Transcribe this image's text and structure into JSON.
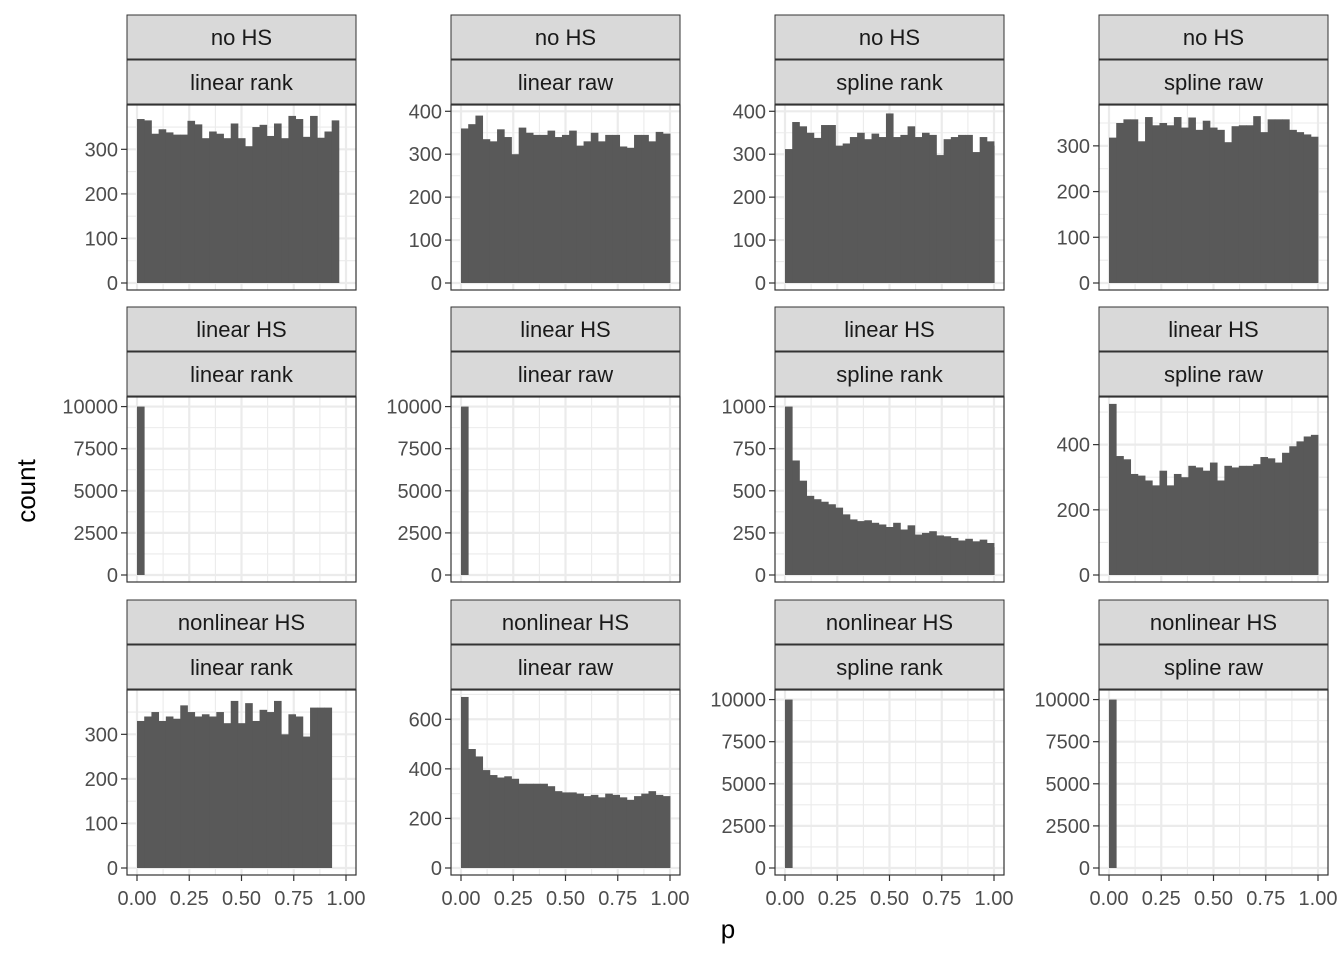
{
  "chart_data": {
    "type": "bar",
    "xlabel": "p",
    "ylabel": "count",
    "xlim": [
      0,
      1
    ],
    "x_ticks": [
      0,
      0.25,
      0.5,
      0.75,
      1
    ],
    "x_tick_labels": [
      "0.00",
      "0.25",
      "0.50",
      "0.75",
      "1.00"
    ],
    "bin_width": 0.0345,
    "grid": true,
    "bar_color": "#595959",
    "strip_color": "#d9d9d9",
    "panels": [
      {
        "row_label": "no HS",
        "col_label": "linear rank",
        "ylim": [
          0,
          395
        ],
        "y_ticks": [
          0,
          100,
          200,
          300
        ],
        "values": [
          368,
          365,
          335,
          345,
          338,
          333,
          333,
          364,
          356,
          325,
          340,
          335,
          325,
          358,
          325,
          307,
          350,
          355,
          330,
          358,
          325,
          375,
          368,
          328,
          375,
          326,
          340,
          365
        ]
      },
      {
        "row_label": "no HS",
        "col_label": "linear raw",
        "ylim": [
          0,
          410
        ],
        "y_ticks": [
          0,
          100,
          200,
          300,
          400
        ],
        "values": [
          360,
          370,
          390,
          335,
          330,
          358,
          340,
          300,
          362,
          350,
          345,
          345,
          355,
          340,
          345,
          355,
          320,
          330,
          350,
          330,
          345,
          345,
          318,
          315,
          345,
          345,
          330,
          352,
          348
        ]
      },
      {
        "row_label": "no HS",
        "col_label": "spline rank",
        "ylim": [
          0,
          410
        ],
        "y_ticks": [
          0,
          100,
          200,
          300,
          400
        ],
        "values": [
          312,
          375,
          365,
          350,
          338,
          368,
          368,
          320,
          325,
          340,
          350,
          335,
          348,
          340,
          395,
          340,
          345,
          365,
          340,
          350,
          345,
          298,
          335,
          340,
          345,
          345,
          305,
          340,
          330,
          320
        ]
      },
      {
        "row_label": "no HS",
        "col_label": "spline raw",
        "ylim": [
          0,
          385
        ],
        "y_ticks": [
          0,
          100,
          200,
          300
        ],
        "values": [
          318,
          350,
          358,
          358,
          310,
          363,
          345,
          350,
          345,
          363,
          340,
          362,
          335,
          355,
          340,
          335,
          308,
          343,
          345,
          345,
          365,
          330,
          358,
          358,
          358,
          335,
          330,
          325,
          320
        ]
      },
      {
        "row_label": "linear HS",
        "col_label": "linear rank",
        "ylim": [
          0,
          10450
        ],
        "y_ticks": [
          0,
          2500,
          5000,
          7500,
          10000
        ],
        "y_tick_labels": [
          "0",
          "2500",
          "5000",
          "7500",
          "10000"
        ],
        "values": [
          10000,
          0,
          0,
          0,
          0,
          0,
          0,
          0,
          0,
          0,
          0,
          0,
          0,
          0,
          0,
          0,
          0,
          0,
          0,
          0,
          0,
          0,
          0,
          0,
          0,
          0,
          0,
          0,
          0
        ]
      },
      {
        "row_label": "linear HS",
        "col_label": "linear raw",
        "ylim": [
          0,
          10450
        ],
        "y_ticks": [
          0,
          2500,
          5000,
          7500,
          10000
        ],
        "y_tick_labels": [
          "0",
          "2500",
          "5000",
          "7500",
          "10000"
        ],
        "values": [
          10000,
          0,
          0,
          0,
          0,
          0,
          0,
          0,
          0,
          0,
          0,
          0,
          0,
          0,
          0,
          0,
          0,
          0,
          0,
          0,
          0,
          0,
          0,
          0,
          0,
          0,
          0,
          0,
          0
        ]
      },
      {
        "row_label": "linear HS",
        "col_label": "spline rank",
        "ylim": [
          0,
          1045
        ],
        "y_ticks": [
          0,
          250,
          500,
          750,
          1000
        ],
        "y_tick_labels": [
          "0",
          "250",
          "500",
          "750",
          "1000"
        ],
        "values": [
          1000,
          680,
          560,
          470,
          450,
          435,
          420,
          400,
          360,
          330,
          320,
          325,
          310,
          300,
          285,
          310,
          270,
          295,
          240,
          250,
          260,
          235,
          230,
          220,
          205,
          215,
          200,
          210,
          190,
          165
        ]
      },
      {
        "row_label": "linear HS",
        "col_label": "spline raw",
        "ylim": [
          0,
          540
        ],
        "y_ticks": [
          0,
          200,
          400
        ],
        "values": [
          525,
          365,
          355,
          310,
          305,
          290,
          275,
          320,
          275,
          310,
          300,
          335,
          330,
          320,
          345,
          290,
          335,
          330,
          335,
          335,
          340,
          362,
          358,
          345,
          375,
          395,
          410,
          425,
          430
        ]
      },
      {
        "row_label": "nonlinear HS",
        "col_label": "linear rank",
        "ylim": [
          0,
          395
        ],
        "y_ticks": [
          0,
          100,
          200,
          300
        ],
        "values": [
          330,
          340,
          350,
          330,
          340,
          335,
          365,
          350,
          340,
          345,
          340,
          350,
          325,
          375,
          325,
          370,
          330,
          355,
          350,
          375,
          300,
          345,
          340,
          295,
          360,
          360,
          360
        ]
      },
      {
        "row_label": "nonlinear HS",
        "col_label": "linear raw",
        "ylim": [
          0,
          710
        ],
        "y_ticks": [
          0,
          200,
          400,
          600
        ],
        "values": [
          690,
          480,
          450,
          395,
          375,
          365,
          370,
          360,
          340,
          340,
          340,
          340,
          330,
          310,
          305,
          305,
          300,
          290,
          295,
          285,
          300,
          295,
          285,
          275,
          290,
          300,
          310,
          295,
          290
        ]
      },
      {
        "row_label": "nonlinear HS",
        "col_label": "spline rank",
        "ylim": [
          0,
          10450
        ],
        "y_ticks": [
          0,
          2500,
          5000,
          7500,
          10000
        ],
        "y_tick_labels": [
          "0",
          "2500",
          "5000",
          "7500",
          "10000"
        ],
        "values": [
          10000,
          0,
          0,
          0,
          0,
          0,
          0,
          0,
          0,
          0,
          0,
          0,
          0,
          0,
          0,
          0,
          0,
          0,
          0,
          0,
          0,
          0,
          0,
          0,
          0,
          0,
          0,
          0,
          0
        ]
      },
      {
        "row_label": "nonlinear HS",
        "col_label": "spline raw",
        "ylim": [
          0,
          10450
        ],
        "y_ticks": [
          0,
          2500,
          5000,
          7500,
          10000
        ],
        "y_tick_labels": [
          "0",
          "2500",
          "5000",
          "7500",
          "10000"
        ],
        "values": [
          10000,
          0,
          0,
          0,
          0,
          0,
          0,
          0,
          0,
          0,
          0,
          0,
          0,
          0,
          0,
          0,
          0,
          0,
          0,
          0,
          0,
          0,
          0,
          0,
          0,
          0,
          0,
          0,
          0
        ]
      }
    ]
  }
}
